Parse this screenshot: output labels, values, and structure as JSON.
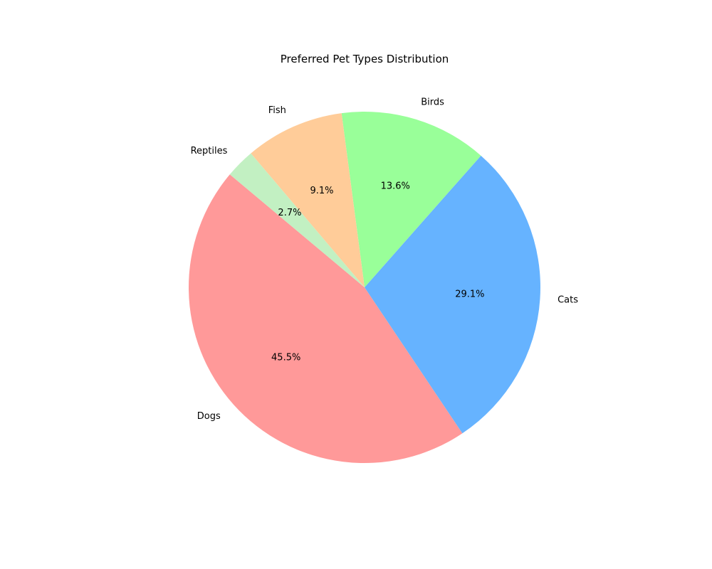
{
  "chart_data": {
    "type": "pie",
    "title": "Preferred Pet Types Distribution",
    "start_angle_deg": 140,
    "direction": "counterclockwise",
    "slices": [
      {
        "label": "Dogs",
        "value": 45.5,
        "pct_label": "45.5%",
        "color": "#ff9999"
      },
      {
        "label": "Cats",
        "value": 29.1,
        "pct_label": "29.1%",
        "color": "#66b3ff"
      },
      {
        "label": "Birds",
        "value": 13.6,
        "pct_label": "13.6%",
        "color": "#99ff99"
      },
      {
        "label": "Fish",
        "value": 9.1,
        "pct_label": "9.1%",
        "color": "#ffcc99"
      },
      {
        "label": "Reptiles",
        "value": 2.7,
        "pct_label": "2.7%",
        "color": "#c2f0c2"
      }
    ]
  }
}
